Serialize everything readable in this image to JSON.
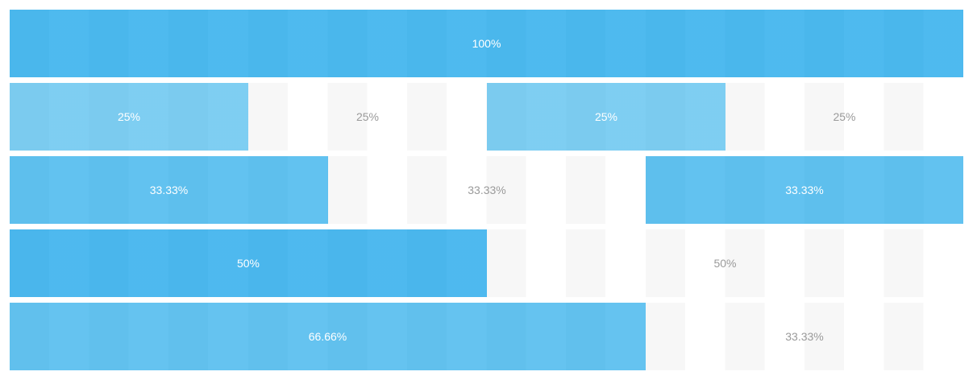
{
  "rows": [
    {
      "cells": [
        "100%"
      ]
    },
    {
      "cells": [
        "25%",
        "25%",
        "25%",
        "25%"
      ]
    },
    {
      "cells": [
        "33.33%",
        "33.33%",
        "33.33%"
      ]
    },
    {
      "cells": [
        "50%",
        "50%"
      ]
    },
    {
      "cells": [
        "66.66%",
        "33.33%"
      ]
    }
  ]
}
